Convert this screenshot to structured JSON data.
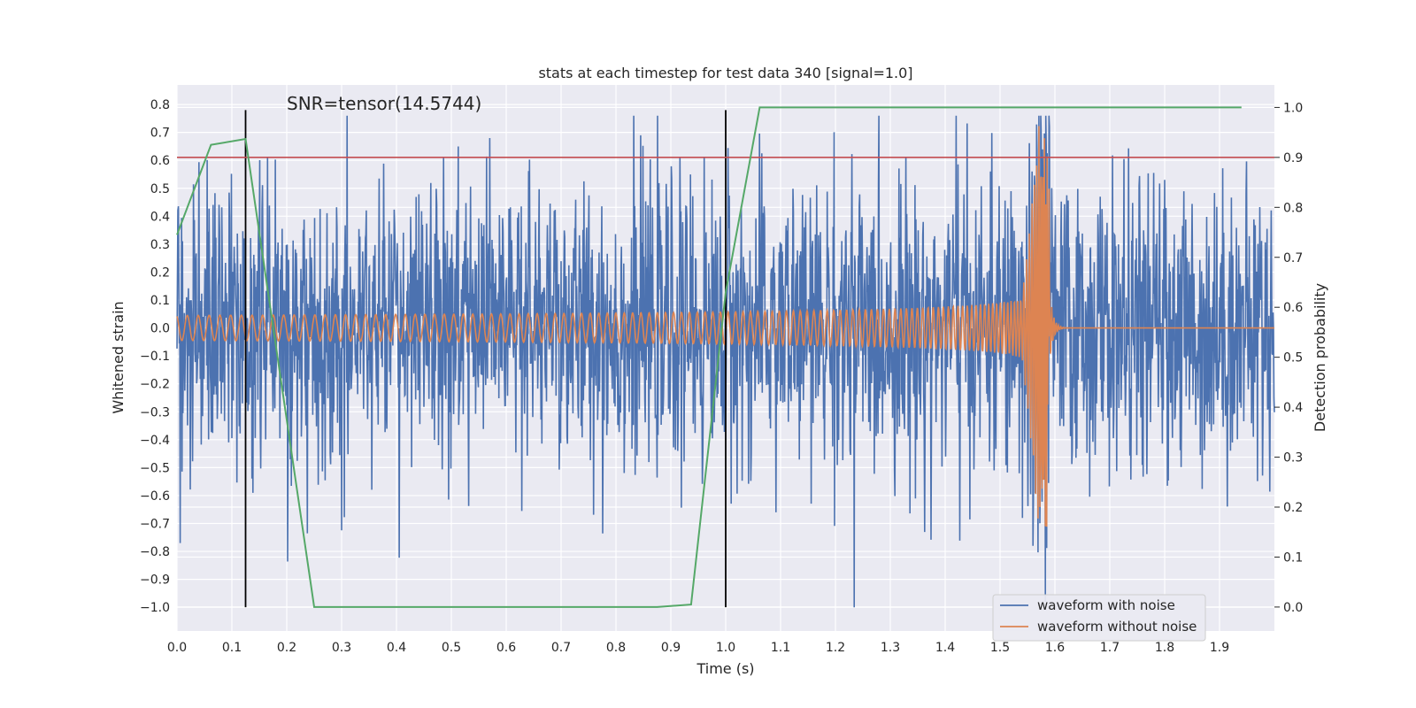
{
  "chart_data": {
    "type": "line",
    "title": "stats at each timestep for test data 340 [signal=1.0]",
    "xlabel": "Time (s)",
    "ylabel": "Whitened strain",
    "y2label": "Detection probability",
    "annotation": "SNR=tensor(14.5744)",
    "xlim": [
      0.0,
      2.0
    ],
    "ylim": [
      -1.085,
      0.87
    ],
    "y2lim": [
      -0.048,
      1.045
    ],
    "x_ticks": [
      "0.0",
      "0.1",
      "0.2",
      "0.3",
      "0.4",
      "0.5",
      "0.6",
      "0.7",
      "0.8",
      "0.9",
      "1.0",
      "1.1",
      "1.2",
      "1.3",
      "1.4",
      "1.5",
      "1.6",
      "1.7",
      "1.8",
      "1.9"
    ],
    "y_ticks": [
      "0.8",
      "0.7",
      "0.6",
      "0.5",
      "0.4",
      "0.3",
      "0.2",
      "0.1",
      "0.0",
      "−0.1",
      "−0.2",
      "−0.3",
      "−0.4",
      "−0.5",
      "−0.6",
      "−0.7",
      "−0.8",
      "−0.9",
      "−1.0"
    ],
    "y2_ticks": [
      "1.0",
      "0.9",
      "0.8",
      "0.7",
      "0.6",
      "0.5",
      "0.4",
      "0.3",
      "0.2",
      "0.1",
      "0.0"
    ],
    "grid": true,
    "legend_position": "lower-right",
    "colors": {
      "noise": "#4c72b0",
      "clean": "#dd8452",
      "probability": "#55a868",
      "threshold": "#c44e52",
      "marker": "#000000",
      "background": "#eaeaf2"
    },
    "series": [
      {
        "name": "waveform with noise",
        "description_kind": "noisy",
        "noise_sigma": 0.25,
        "spikes": [
          [
            1.234,
            -1.0
          ],
          [
            1.42,
            0.76
          ],
          [
            1.59,
            0.72
          ],
          [
            1.56,
            -0.78
          ],
          [
            0.165,
            0.61
          ],
          [
            0.57,
            0.68
          ]
        ]
      },
      {
        "name": "waveform without noise",
        "description_kind": "chirp",
        "merger_time": 1.59,
        "peak": 0.73,
        "trough": -0.44
      }
    ],
    "detection_probability": {
      "x": [
        0.0,
        0.062,
        0.125,
        0.25,
        0.3,
        0.875,
        0.937,
        1.0,
        1.062,
        1.94
      ],
      "y": [
        0.745,
        0.925,
        0.937,
        0.0,
        0.0,
        0.0,
        0.005,
        0.63,
        1.0,
        1.0
      ]
    },
    "threshold_y2": 0.9,
    "vertical_markers_x": [
      0.125,
      1.0
    ],
    "vertical_marker_y_range": [
      -1.0,
      0.78
    ]
  }
}
